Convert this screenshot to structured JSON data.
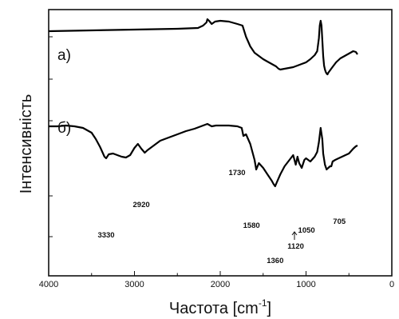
{
  "chart_data": {
    "type": "line",
    "xlabel": "Частота [cm",
    "xlabel_sup": "-1",
    "xlabel_end": "]",
    "ylabel": "Інтенсивність",
    "xlim": [
      4000,
      0
    ],
    "x_direction": "reversed",
    "xticks": [
      "4000",
      "3000",
      "2000",
      "1000",
      "0"
    ],
    "y_tick_labels_shown": false,
    "grid": false,
    "series": [
      {
        "name": "а)",
        "x": [
          4000,
          3500,
          3000,
          2500,
          2260,
          2200,
          2160,
          2150,
          2130,
          2100,
          2060,
          2000,
          1900,
          1800,
          1740,
          1700,
          1650,
          1600,
          1550,
          1500,
          1450,
          1400,
          1350,
          1320,
          1300,
          1250,
          1200,
          1150,
          1100,
          1050,
          1000,
          950,
          900,
          870,
          850,
          840,
          830,
          820,
          810,
          800,
          790,
          780,
          770,
          760,
          750,
          740,
          700,
          650,
          600,
          550,
          500,
          450,
          420,
          400
        ],
        "y": [
          51,
          52,
          53,
          54,
          55,
          58,
          62,
          66,
          64,
          60,
          63,
          64,
          63,
          60,
          58,
          44,
          32,
          24,
          20,
          16,
          13,
          10,
          7,
          4,
          3,
          4,
          5,
          6,
          8,
          10,
          12,
          16,
          21,
          26,
          42,
          58,
          64,
          58,
          40,
          20,
          8,
          3,
          0,
          -2,
          -3,
          -1,
          5,
          12,
          17,
          20,
          23,
          26,
          25,
          22
        ]
      },
      {
        "name": "б)",
        "x": [
          4000,
          3900,
          3800,
          3700,
          3600,
          3500,
          3450,
          3400,
          3350,
          3330,
          3300,
          3250,
          3200,
          3150,
          3100,
          3050,
          3000,
          2960,
          2920,
          2880,
          2850,
          2800,
          2700,
          2600,
          2500,
          2400,
          2300,
          2200,
          2150,
          2100,
          2050,
          2000,
          1900,
          1800,
          1750,
          1730,
          1700,
          1650,
          1600,
          1580,
          1550,
          1500,
          1450,
          1400,
          1380,
          1360,
          1340,
          1300,
          1250,
          1200,
          1150,
          1120,
          1100,
          1080,
          1050,
          1020,
          1000,
          950,
          900,
          870,
          850,
          830,
          810,
          800,
          780,
          760,
          740,
          720,
          705,
          690,
          660,
          620,
          580,
          540,
          500,
          450,
          420,
          400
        ],
        "y": [
          30,
          30,
          31,
          30,
          28,
          22,
          14,
          4,
          -8,
          -10,
          -5,
          -4,
          -6,
          -8,
          -9,
          -6,
          3,
          8,
          2,
          -3,
          0,
          4,
          12,
          16,
          20,
          24,
          27,
          31,
          33,
          30,
          31,
          31,
          31,
          30,
          28,
          18,
          20,
          8,
          -12,
          -24,
          -16,
          -22,
          -30,
          -38,
          -42,
          -45,
          -40,
          -30,
          -20,
          -13,
          -6,
          -18,
          -8,
          -16,
          -22,
          -12,
          -10,
          -14,
          -8,
          -2,
          10,
          28,
          14,
          -4,
          -18,
          -24,
          -22,
          -20,
          -20,
          -14,
          -12,
          -10,
          -8,
          -6,
          -4,
          2,
          5,
          6
        ]
      }
    ],
    "curve_labels": [
      "а)",
      "б)"
    ],
    "annotations": [
      {
        "text": "3330",
        "x": 3330
      },
      {
        "text": "2920",
        "x": 2920
      },
      {
        "text": "1730",
        "x": 1730
      },
      {
        "text": "1580",
        "x": 1580
      },
      {
        "text": "1360",
        "x": 1360
      },
      {
        "text": "1120",
        "x": 1120
      },
      {
        "text": "1050",
        "x": 1050
      },
      {
        "text": "705",
        "x": 705
      }
    ]
  }
}
